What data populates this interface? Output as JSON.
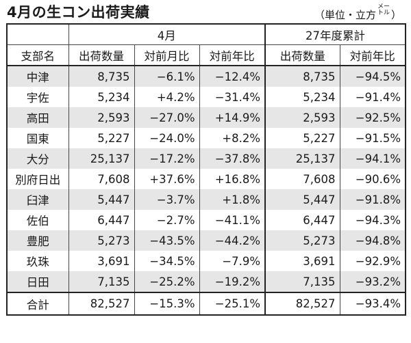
{
  "title": "4月の生コン出荷実績",
  "unit": {
    "prefix": "（単位・立方",
    "meter_top": "メー",
    "meter_bottom": "トル",
    "suffix": "）"
  },
  "headers": {
    "month_group": "4月",
    "cumulative_group": "27年度累計",
    "columns": [
      "支部名",
      "出荷数量",
      "対前月比",
      "対前年比",
      "出荷数量",
      "対前年比"
    ]
  },
  "rows": [
    [
      "中津",
      "8,735",
      "−6.1%",
      "−12.4%",
      "8,735",
      "−94.5%"
    ],
    [
      "宇佐",
      "5,234",
      "+4.2%",
      "−31.4%",
      "5,234",
      "−91.4%"
    ],
    [
      "高田",
      "2,593",
      "−27.0%",
      "+14.9%",
      "2,593",
      "−92.5%"
    ],
    [
      "国東",
      "5,227",
      "−24.0%",
      "+8.2%",
      "5,227",
      "−91.5%"
    ],
    [
      "大分",
      "25,137",
      "−17.2%",
      "−37.8%",
      "25,137",
      "−94.1%"
    ],
    [
      "別府日出",
      "7,608",
      "+37.6%",
      "+16.8%",
      "7,608",
      "−90.6%"
    ],
    [
      "臼津",
      "5,447",
      "−3.7%",
      "+1.8%",
      "5,447",
      "−91.8%"
    ],
    [
      "佐伯",
      "6,447",
      "−2.7%",
      "−41.1%",
      "6,447",
      "−94.3%"
    ],
    [
      "豊肥",
      "5,273",
      "−43.5%",
      "−44.2%",
      "5,273",
      "−94.8%"
    ],
    [
      "玖珠",
      "3,691",
      "−34.5%",
      "−7.9%",
      "3,691",
      "−92.9%"
    ],
    [
      "日田",
      "7,135",
      "−25.2%",
      "−19.2%",
      "7,135",
      "−93.2%"
    ]
  ],
  "total": [
    "合計",
    "82,527",
    "−15.3%",
    "−25.1%",
    "82,527",
    "−93.4%"
  ]
}
